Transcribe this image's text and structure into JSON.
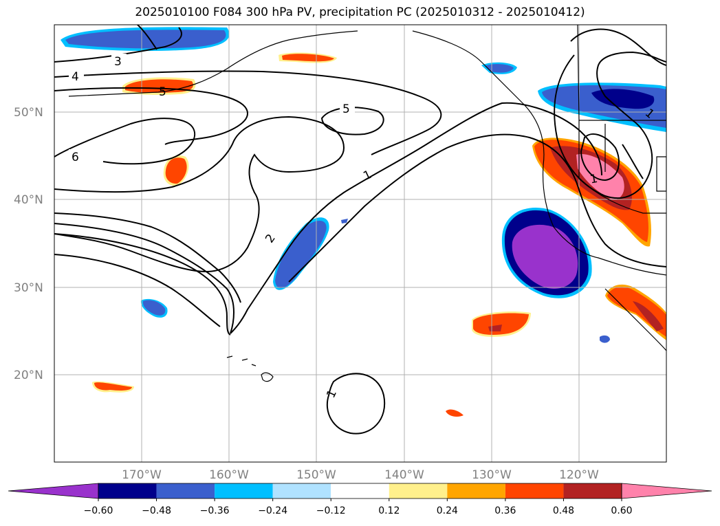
{
  "title": "2025010100 F084 300 hPa PV, precipitation PC (2025010312 - 2025010412)",
  "lat_labels": [
    "50°N",
    "40°N",
    "30°N",
    "20°N"
  ],
  "lon_labels": [
    "170°W",
    "160°W",
    "150°W",
    "140°W",
    "130°W",
    "120°W"
  ],
  "contour_labels": [
    "3",
    "4",
    "5",
    "5",
    "6",
    "1",
    "2",
    "1",
    "1",
    "1"
  ],
  "colorbar": {
    "ticks": [
      "−0.60",
      "−0.48",
      "−0.36",
      "−0.24",
      "−0.12",
      "0.12",
      "0.24",
      "0.36",
      "0.48",
      "0.60"
    ],
    "colors": [
      "#9932cc",
      "#00008b",
      "#3a5fcd",
      "#00bfff",
      "#b0e2ff",
      "#ffffff",
      "#fff08c",
      "#ffa500",
      "#ff4500",
      "#b22222",
      "#ff82ab",
      "#ff82ab"
    ]
  }
}
